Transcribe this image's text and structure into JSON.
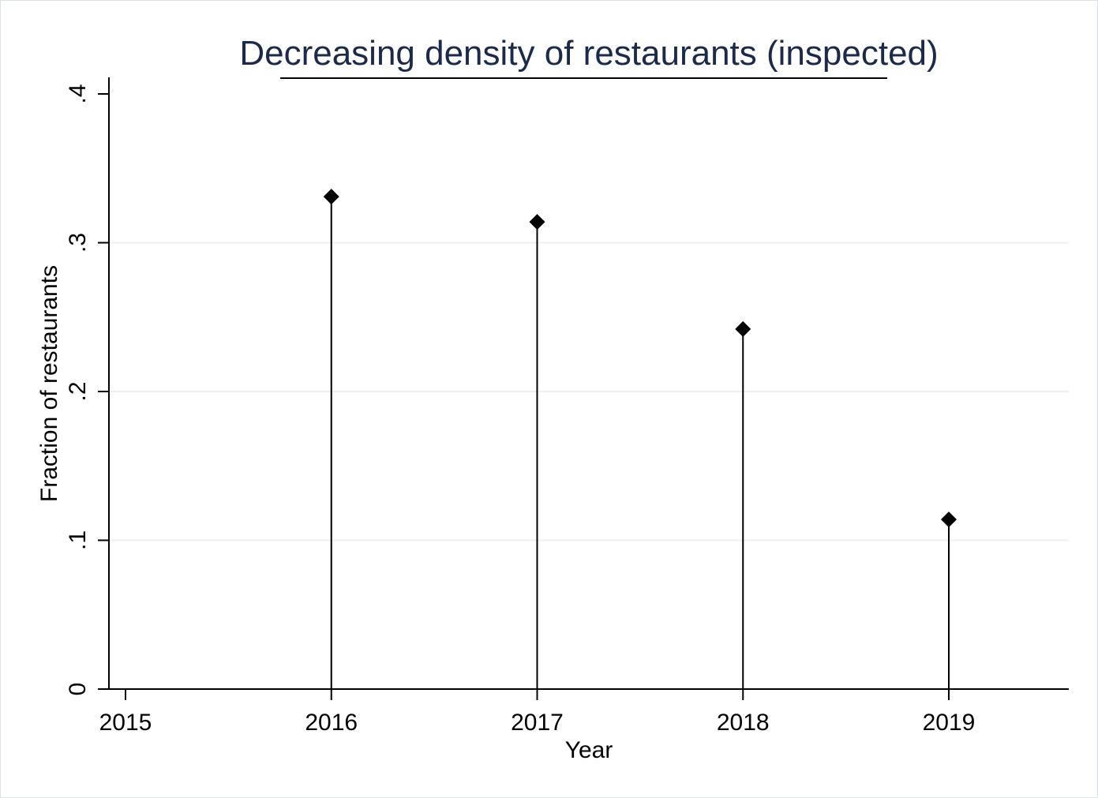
{
  "chart_data": {
    "type": "stem",
    "title": "Decreasing density of restaurants (inspected)",
    "xlabel": "Year",
    "ylabel": "Fraction of restaurants",
    "xlim": [
      2015,
      2019.6
    ],
    "ylim": [
      0,
      0.4
    ],
    "x_ticks": [
      2015,
      2016,
      2017,
      2018,
      2019
    ],
    "x_tick_labels": [
      "2015",
      "2016",
      "2017",
      "2018",
      "2019"
    ],
    "y_ticks": [
      0,
      0.1,
      0.2,
      0.3,
      0.4
    ],
    "y_tick_labels": [
      "0",
      ".1",
      ".2",
      ".3",
      ".4"
    ],
    "grid": true,
    "marker": "diamond",
    "colors": {
      "stem": "#000000",
      "grid": "#eaf0f3",
      "title": "#1b2a4a"
    },
    "series": [
      {
        "x": [
          2016,
          2017,
          2018,
          2019
        ],
        "values": [
          0.331,
          0.314,
          0.242,
          0.114
        ]
      }
    ]
  }
}
